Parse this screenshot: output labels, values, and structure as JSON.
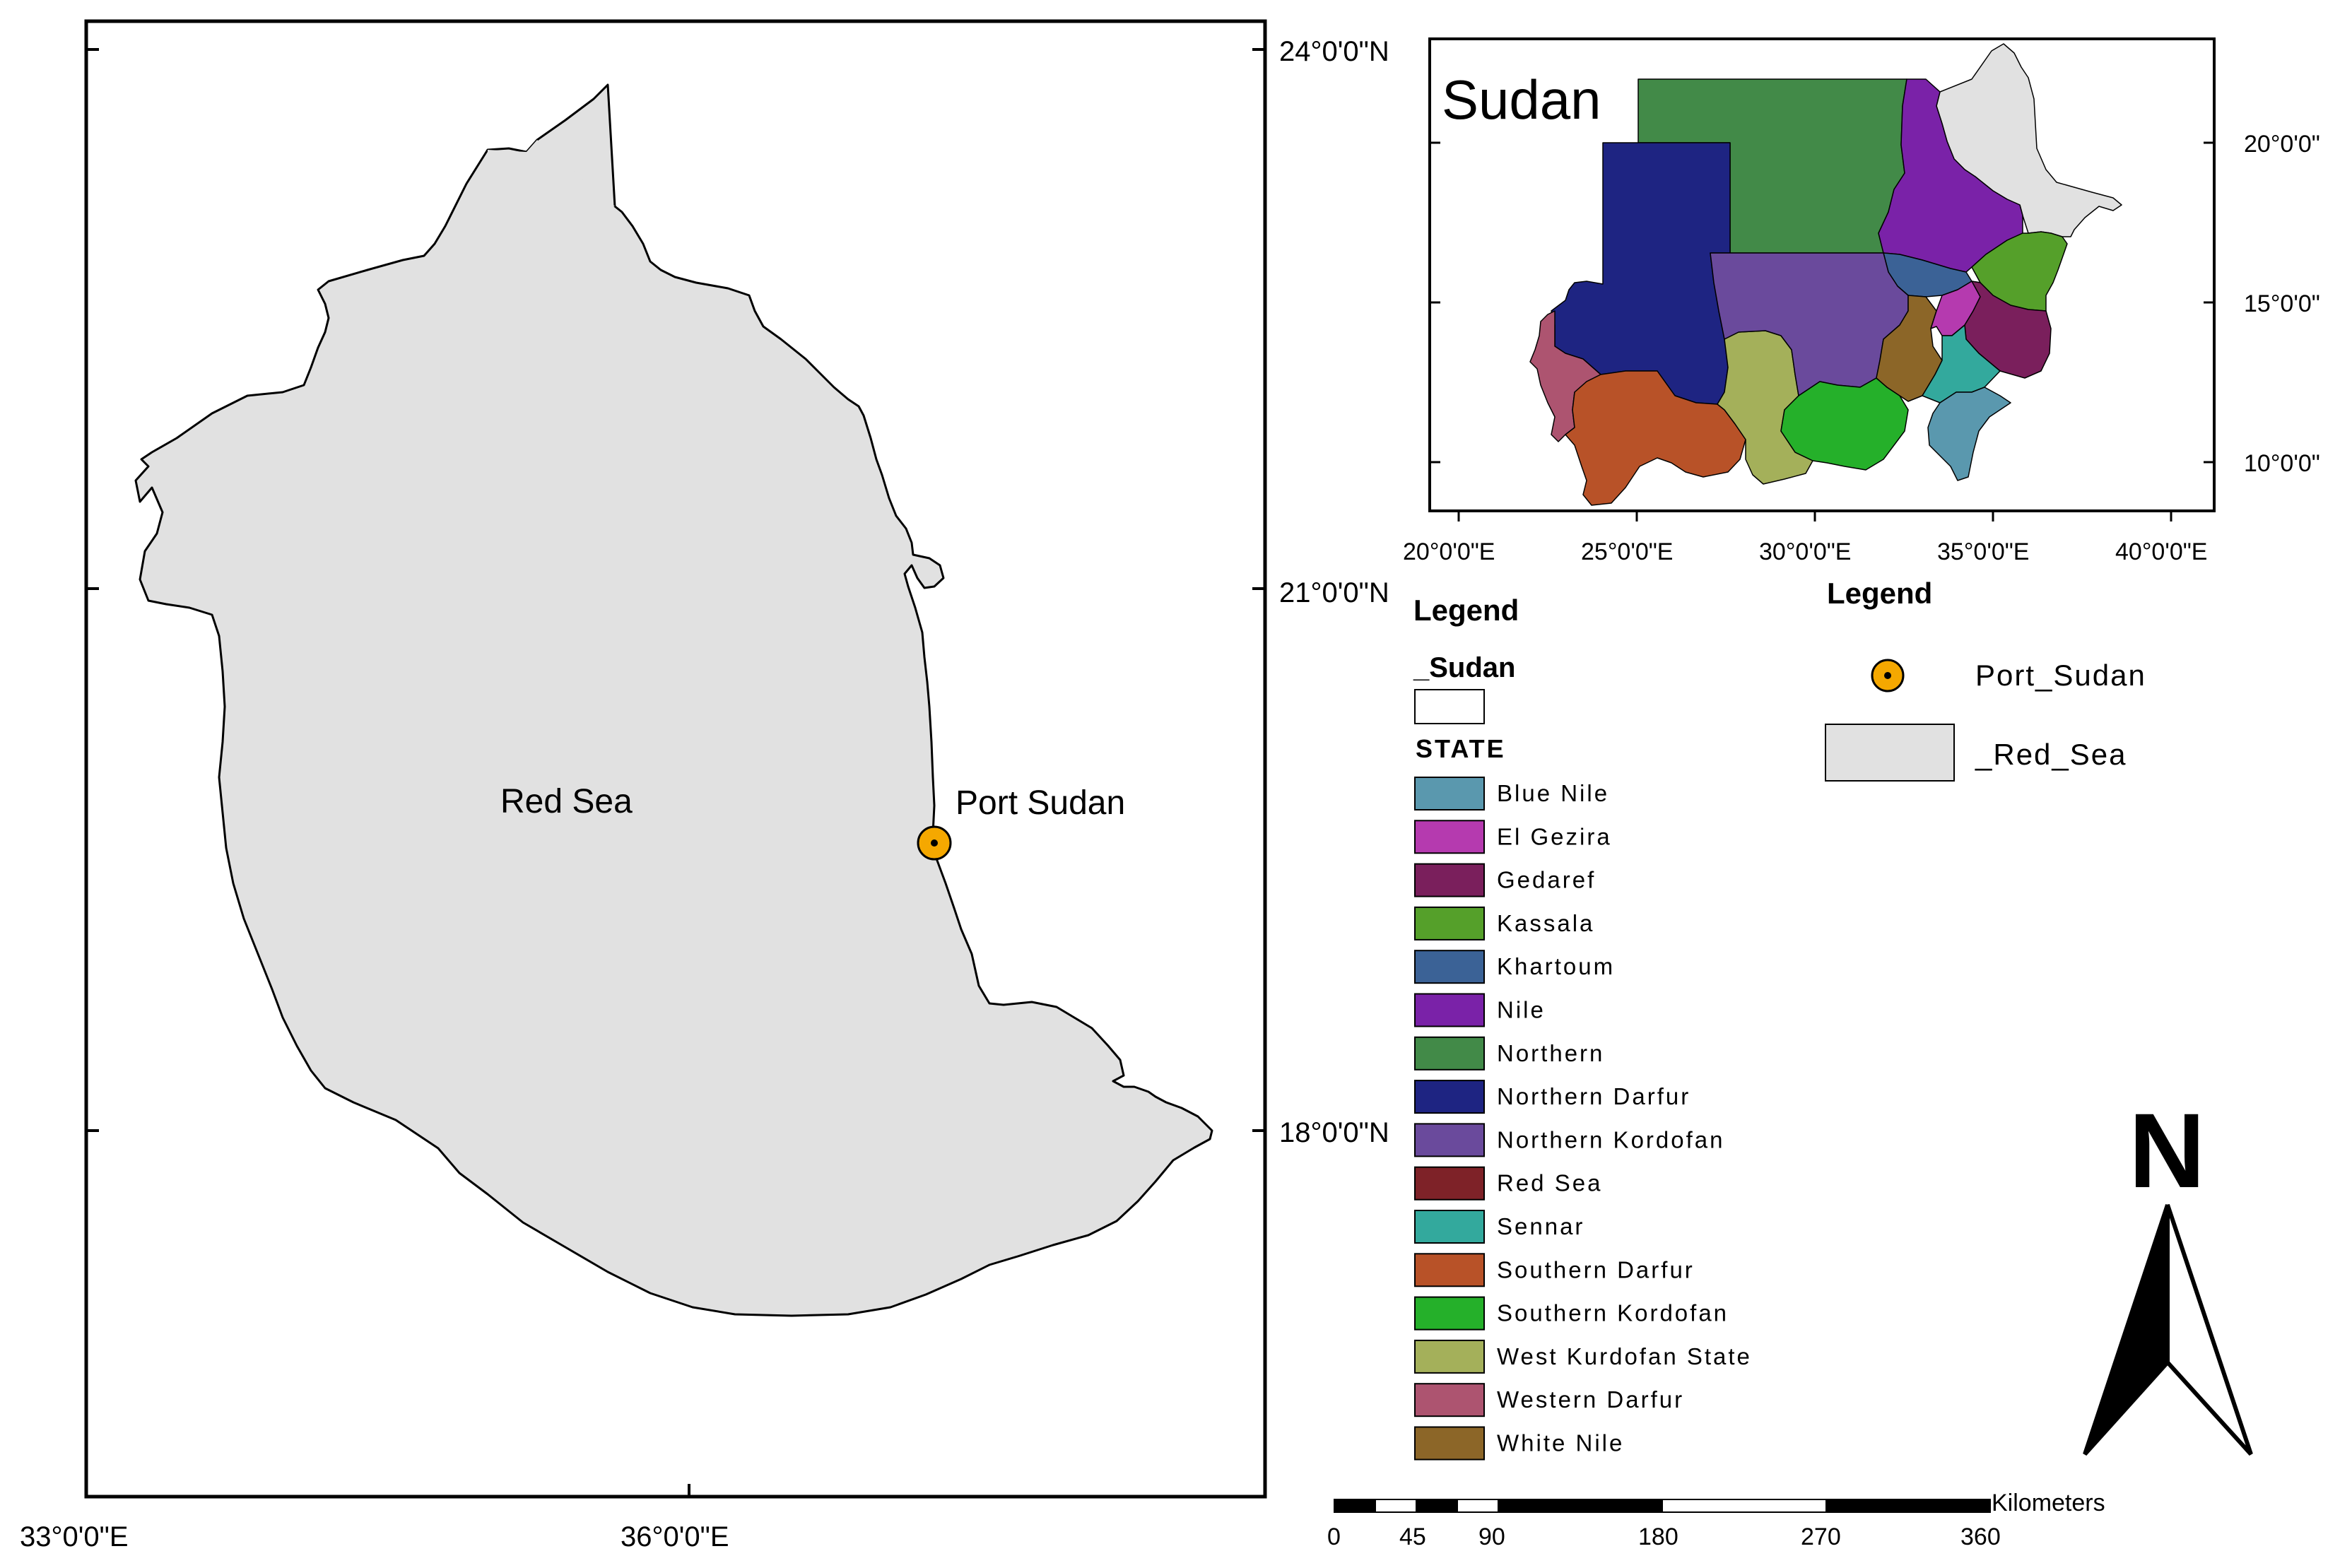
{
  "main_map": {
    "region_label": "Red Sea",
    "point_label": "Port Sudan",
    "lon_labels": [
      "33°0'0\"E",
      "36°0'0\"E"
    ],
    "lat_labels": [
      "24°0'0\"N",
      "21°0'0\"N",
      "18°0'0\"N"
    ],
    "colors": {
      "region_fill": "#e1e1e1",
      "point_fill": "#f5a800"
    }
  },
  "inset_map": {
    "title": "Sudan",
    "lon_labels": [
      "20°0'0\"E",
      "25°0'0\"E",
      "30°0'0\"E",
      "35°0'0\"E",
      "40°0'0\"E"
    ],
    "lat_labels": [
      "20°0'0\"",
      "15°0'0\"",
      "10°0'0\""
    ]
  },
  "legend_states": {
    "title": "Legend",
    "layer_name": "_Sudan",
    "field_name": "STATE",
    "items": [
      {
        "label": "Blue Nile",
        "color": "#5a98ae"
      },
      {
        "label": "El Gezira",
        "color": "#b53aaf"
      },
      {
        "label": "Gedaref",
        "color": "#7a1f5c"
      },
      {
        "label": "Kassala",
        "color": "#55a02a"
      },
      {
        "label": "Khartoum",
        "color": "#3b6296"
      },
      {
        "label": "Nile",
        "color": "#7a22a8"
      },
      {
        "label": "Northern",
        "color": "#428a48"
      },
      {
        "label": "Northern Darfur",
        "color": "#1e2482"
      },
      {
        "label": "Northern Kordofan",
        "color": "#6a4a9c"
      },
      {
        "label": "Red Sea",
        "color": "#7e2228"
      },
      {
        "label": "Sennar",
        "color": "#33a99d"
      },
      {
        "label": "Southern Darfur",
        "color": "#b85228"
      },
      {
        "label": "Southern Kordofan",
        "color": "#25b02a"
      },
      {
        "label": "West Kurdofan State",
        "color": "#a4b05a"
      },
      {
        "label": "Western Darfur",
        "color": "#ad5470"
      },
      {
        "label": "White Nile",
        "color": "#8c6628"
      }
    ]
  },
  "legend_layers": {
    "title": "Legend",
    "items": [
      {
        "label": "Port_Sudan",
        "icon": "point-marker-icon"
      },
      {
        "label": "_Red_Sea",
        "icon": "polygon-swatch"
      }
    ]
  },
  "scale_bar": {
    "unit": "Kilometers",
    "labels": [
      "0",
      "45",
      "90",
      "180",
      "270",
      "360"
    ]
  },
  "north_arrow": {
    "label": "N"
  }
}
